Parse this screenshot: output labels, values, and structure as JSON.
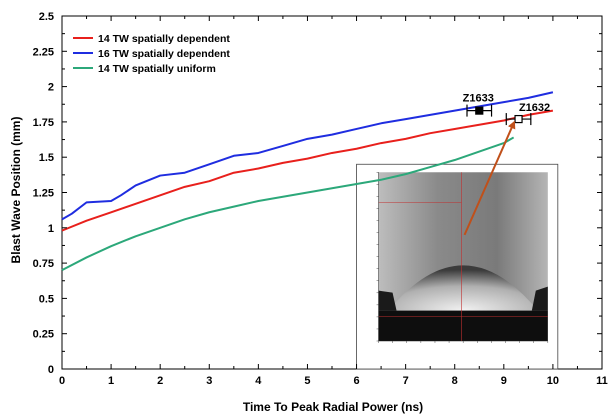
{
  "chart_data": {
    "type": "line",
    "xlabel": "Time To Peak Radial Power (ns)",
    "ylabel": "Blast Wave Position (mm)",
    "xlim": [
      0,
      11
    ],
    "ylim": [
      0,
      2.5
    ],
    "x_ticks": [
      "0",
      "1",
      "2",
      "3",
      "4",
      "5",
      "6",
      "7",
      "8",
      "9",
      "10",
      "11"
    ],
    "y_ticks": [
      "0",
      "0.25",
      "0.5",
      "0.75",
      "1",
      "1.25",
      "1.5",
      "1.75",
      "2",
      "2.25",
      "2.5"
    ],
    "grid": false,
    "legend": {
      "placement": "top-left"
    },
    "series": [
      {
        "name": "14 TW spatially dependent",
        "color": "#e8201c",
        "points": [
          [
            0,
            0.98
          ],
          [
            0.5,
            1.05
          ],
          [
            1,
            1.11
          ],
          [
            1.5,
            1.17
          ],
          [
            2,
            1.23
          ],
          [
            2.5,
            1.29
          ],
          [
            3,
            1.33
          ],
          [
            3.5,
            1.39
          ],
          [
            4,
            1.42
          ],
          [
            4.5,
            1.46
          ],
          [
            5,
            1.49
          ],
          [
            5.5,
            1.53
          ],
          [
            6,
            1.56
          ],
          [
            6.5,
            1.6
          ],
          [
            7,
            1.63
          ],
          [
            7.5,
            1.67
          ],
          [
            8,
            1.7
          ],
          [
            8.5,
            1.73
          ],
          [
            9,
            1.76
          ],
          [
            9.5,
            1.8
          ],
          [
            10,
            1.83
          ]
        ]
      },
      {
        "name": "16 TW spatially dependent",
        "color": "#1f2de0",
        "points": [
          [
            0,
            1.06
          ],
          [
            0.2,
            1.1
          ],
          [
            0.5,
            1.18
          ],
          [
            1,
            1.19
          ],
          [
            1.2,
            1.23
          ],
          [
            1.5,
            1.3
          ],
          [
            2,
            1.37
          ],
          [
            2.5,
            1.39
          ],
          [
            3,
            1.45
          ],
          [
            3.5,
            1.51
          ],
          [
            4,
            1.53
          ],
          [
            4.5,
            1.58
          ],
          [
            5,
            1.63
          ],
          [
            5.5,
            1.66
          ],
          [
            6,
            1.7
          ],
          [
            6.5,
            1.74
          ],
          [
            7,
            1.77
          ],
          [
            7.5,
            1.8
          ],
          [
            8,
            1.83
          ],
          [
            8.5,
            1.86
          ],
          [
            9,
            1.89
          ],
          [
            9.5,
            1.92
          ],
          [
            10,
            1.96
          ]
        ]
      },
      {
        "name": "14 TW spatially uniform",
        "color": "#2ca87a",
        "points": [
          [
            0,
            0.7
          ],
          [
            0.5,
            0.79
          ],
          [
            1,
            0.87
          ],
          [
            1.5,
            0.94
          ],
          [
            2,
            1.0
          ],
          [
            2.5,
            1.06
          ],
          [
            3,
            1.11
          ],
          [
            3.5,
            1.15
          ],
          [
            4,
            1.19
          ],
          [
            4.5,
            1.22
          ],
          [
            5,
            1.25
          ],
          [
            5.5,
            1.28
          ],
          [
            6,
            1.31
          ],
          [
            6.5,
            1.34
          ],
          [
            7,
            1.38
          ],
          [
            7.5,
            1.43
          ],
          [
            8,
            1.48
          ],
          [
            8.5,
            1.54
          ],
          [
            9,
            1.6
          ],
          [
            9.2,
            1.64
          ]
        ]
      }
    ],
    "measurements": [
      {
        "label": "Z1633",
        "x": 8.5,
        "y": 1.83,
        "x_err": 0.25,
        "marker": "filled-square"
      },
      {
        "label": "Z1632",
        "x": 9.3,
        "y": 1.77,
        "x_err": 0.25,
        "marker": "open-square"
      }
    ],
    "annotations": [
      {
        "type": "arrow",
        "color": "#c0501a",
        "from": [
          8.2,
          0.95
        ],
        "to": [
          9.2,
          1.74
        ]
      }
    ],
    "inset": {
      "type": "image",
      "description_visible": false,
      "x_range": [
        6.0,
        10.1
      ],
      "y_range": [
        0.0,
        1.45
      ]
    }
  }
}
